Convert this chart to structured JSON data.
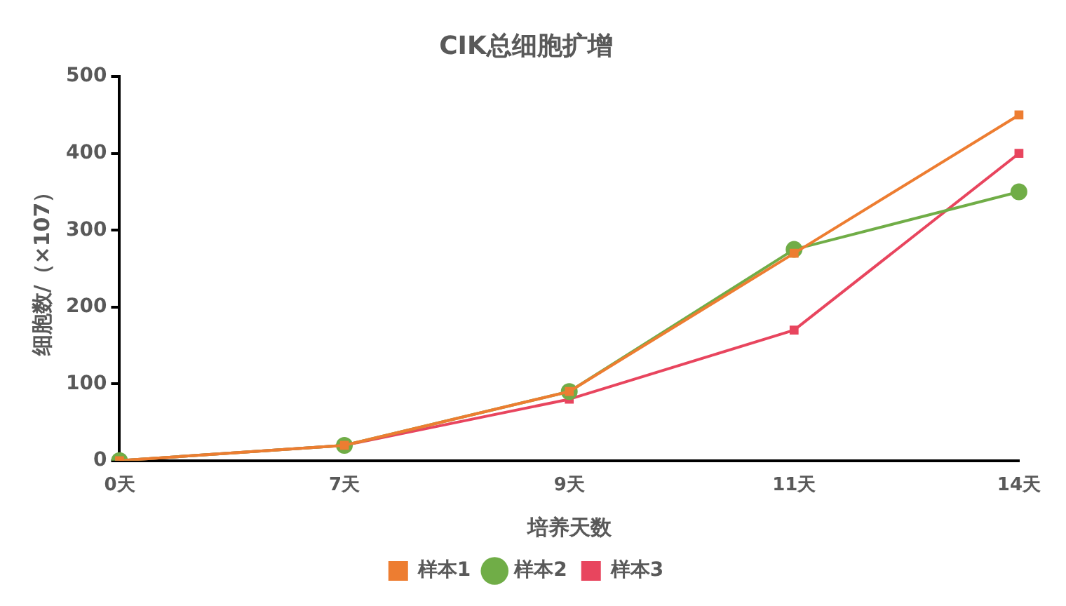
{
  "chart_data": {
    "type": "line",
    "title": "CIK总细胞扩增",
    "xlabel": "培养天数",
    "ylabel": "细胞数/（×107）",
    "categories": [
      "0天",
      "7天",
      "9天",
      "11天",
      "14天"
    ],
    "series": [
      {
        "name": "样本1",
        "color": "#ed7d31",
        "values": [
          0,
          20,
          90,
          270,
          450
        ],
        "marker": "square"
      },
      {
        "name": "样本2",
        "color": "#70ad47",
        "values": [
          0,
          20,
          90,
          275,
          350
        ],
        "marker": "circle"
      },
      {
        "name": "样本3",
        "color": "#e8455e",
        "values": [
          0,
          20,
          80,
          170,
          400
        ],
        "marker": "square"
      }
    ],
    "ylim": [
      0,
      500
    ],
    "yticks": [
      0,
      100,
      200,
      300,
      400,
      500
    ],
    "grid": false,
    "legend": "bottom",
    "line_style": "solid"
  }
}
